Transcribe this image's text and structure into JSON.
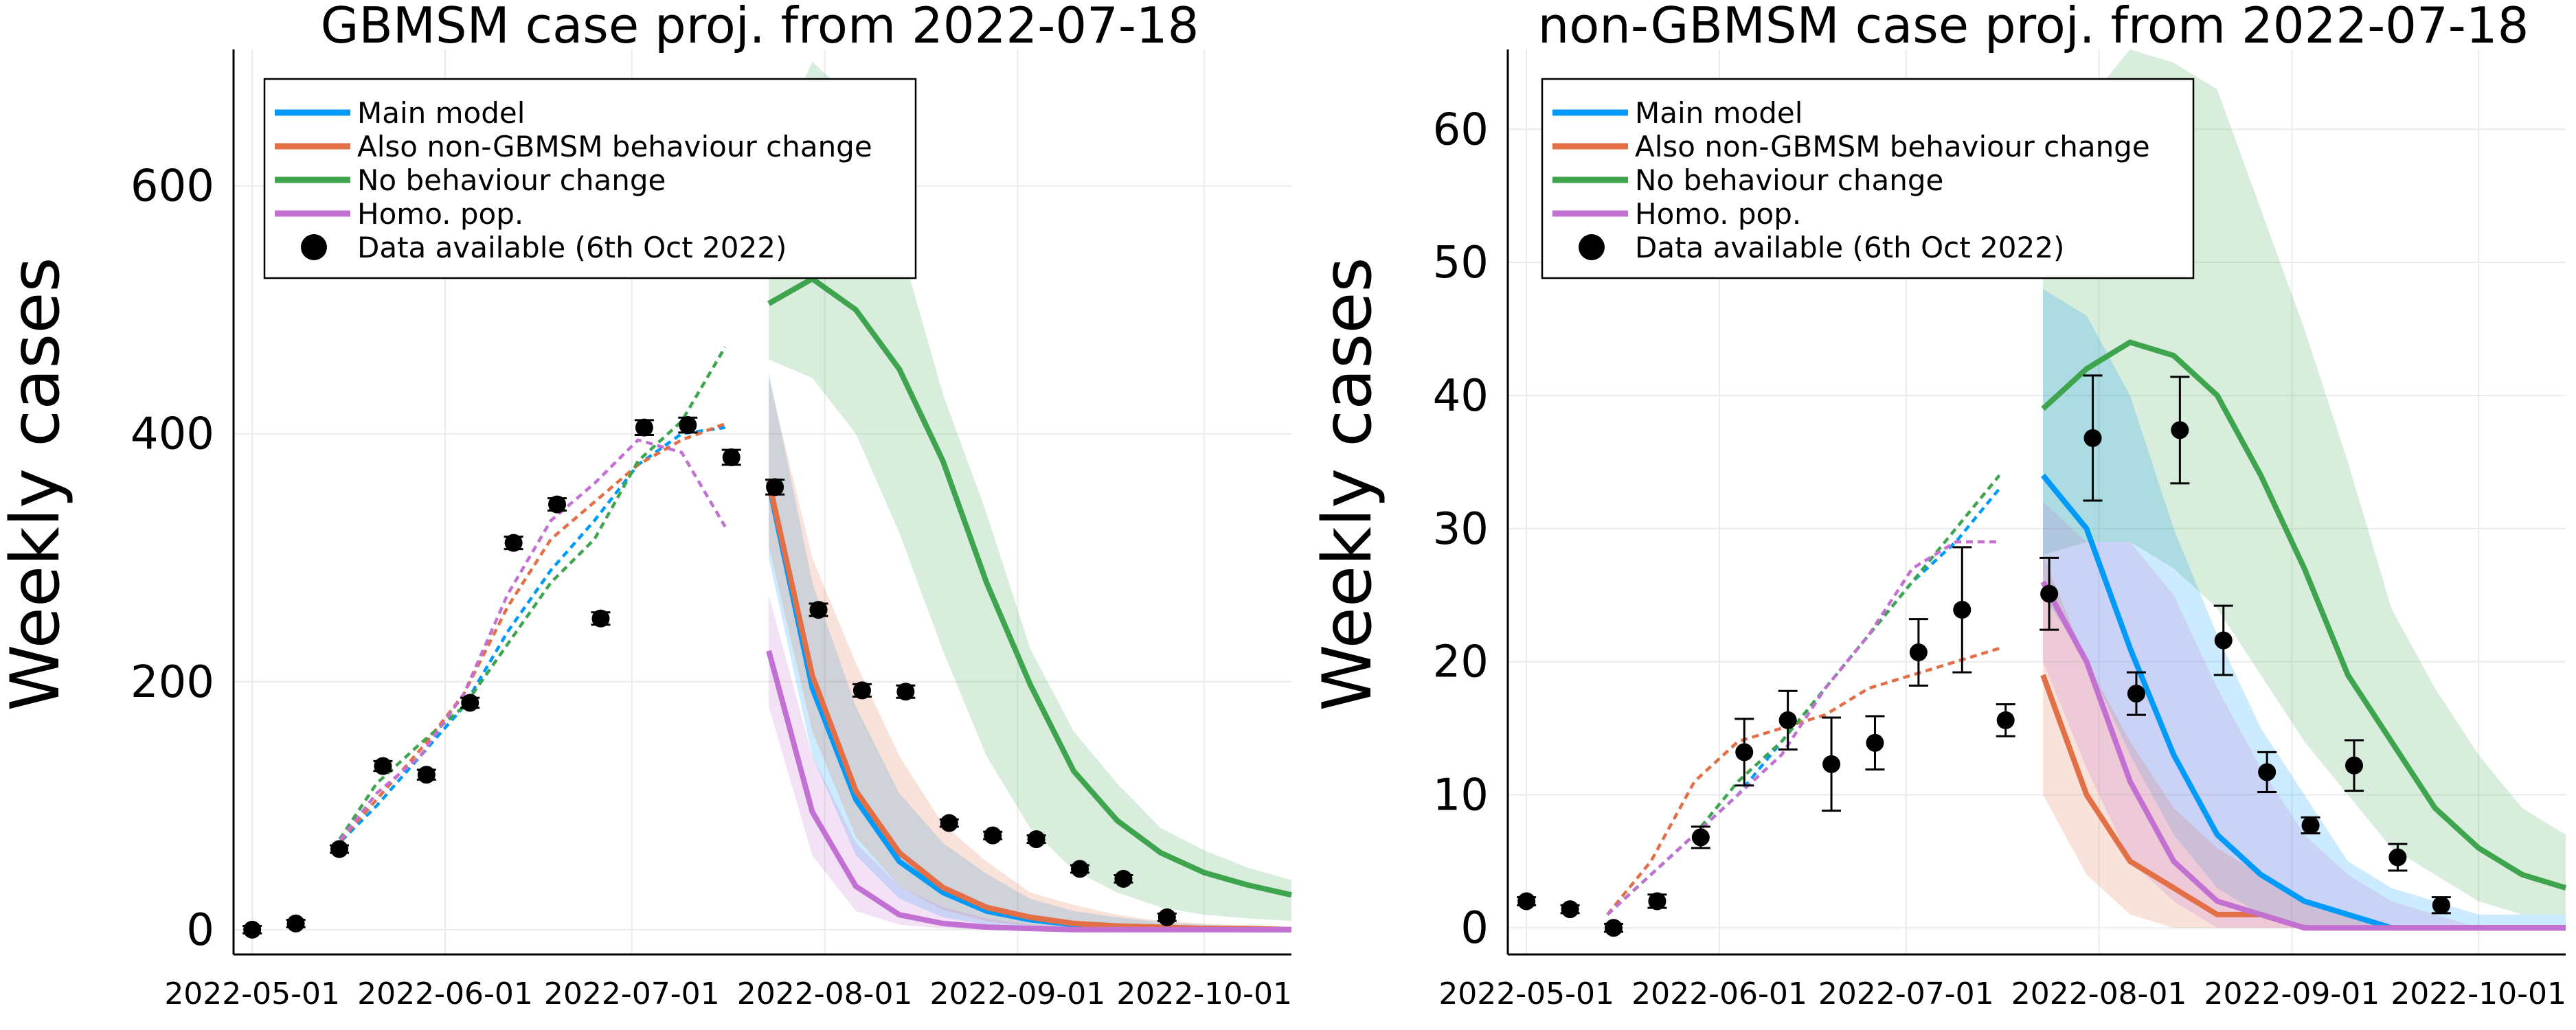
{
  "colors": {
    "main": "#009AFA",
    "also": "#E26F46",
    "nochange": "#3EA44E",
    "homo": "#C270D2",
    "data": "#000000",
    "grid": "#EBEBEB"
  },
  "chart_data": [
    {
      "type": "line",
      "title": "GBMSM case proj. from 2022-07-18",
      "xlabel": "",
      "ylabel": "Weekly cases",
      "x_ticks": [
        "2022-05-01",
        "2022-06-01",
        "2022-07-01",
        "2022-08-01",
        "2022-09-01",
        "2022-10-01"
      ],
      "xlim": [
        "2022-04-28",
        "2022-10-15"
      ],
      "y_ticks": [
        0,
        200,
        400,
        600
      ],
      "ylim": [
        -20,
        710
      ],
      "grid": true,
      "legend_position": "top-left",
      "legend": [
        "Main model",
        "Also non-GBMSM behaviour change",
        "No behaviour change",
        "Homo. pop.",
        "Data available (6th Oct 2022)"
      ],
      "fit_series": [
        {
          "key": "main",
          "x": [
            "2022-05-14",
            "2022-05-21",
            "2022-05-28",
            "2022-06-04",
            "2022-06-11",
            "2022-06-18",
            "2022-06-25",
            "2022-07-02",
            "2022-07-09",
            "2022-07-16"
          ],
          "values": [
            65,
            100,
            140,
            180,
            240,
            290,
            330,
            375,
            400,
            405
          ]
        },
        {
          "key": "also",
          "x": [
            "2022-05-14",
            "2022-05-21",
            "2022-05-28",
            "2022-06-04",
            "2022-06-11",
            "2022-06-18",
            "2022-06-25",
            "2022-07-02",
            "2022-07-09",
            "2022-07-16"
          ],
          "values": [
            65,
            105,
            145,
            190,
            260,
            315,
            345,
            375,
            395,
            408
          ]
        },
        {
          "key": "nochange",
          "x": [
            "2022-05-14",
            "2022-05-21",
            "2022-05-28",
            "2022-06-04",
            "2022-06-11",
            "2022-06-18",
            "2022-06-25",
            "2022-07-02",
            "2022-07-09",
            "2022-07-16"
          ],
          "values": [
            65,
            118,
            150,
            180,
            230,
            280,
            315,
            378,
            410,
            470
          ]
        },
        {
          "key": "homo",
          "x": [
            "2022-05-14",
            "2022-05-21",
            "2022-05-28",
            "2022-06-04",
            "2022-06-11",
            "2022-06-18",
            "2022-06-25",
            "2022-07-02",
            "2022-07-09",
            "2022-07-16"
          ],
          "values": [
            65,
            110,
            140,
            190,
            270,
            330,
            360,
            395,
            385,
            325
          ]
        }
      ],
      "proj_series": [
        {
          "key": "nochange",
          "name": "No behaviour change",
          "x": [
            "2022-07-23",
            "2022-07-30",
            "2022-08-06",
            "2022-08-13",
            "2022-08-20",
            "2022-08-27",
            "2022-09-03",
            "2022-09-10",
            "2022-09-17",
            "2022-09-24",
            "2022-10-01",
            "2022-10-08",
            "2022-10-15"
          ],
          "values": [
            505,
            525,
            500,
            452,
            378,
            280,
            198,
            128,
            88,
            62,
            46,
            36,
            28
          ],
          "lower": [
            460,
            445,
            400,
            320,
            225,
            140,
            82,
            48,
            30,
            18,
            12,
            9,
            7
          ],
          "upper": [
            620,
            700,
            668,
            555,
            432,
            336,
            227,
            160,
            118,
            82,
            64,
            50,
            40
          ]
        },
        {
          "key": "main",
          "name": "Main model",
          "x": [
            "2022-07-23",
            "2022-07-30",
            "2022-08-06",
            "2022-08-13",
            "2022-08-20",
            "2022-08-27",
            "2022-09-03",
            "2022-09-10",
            "2022-09-17",
            "2022-09-24",
            "2022-10-01",
            "2022-10-08",
            "2022-10-15"
          ],
          "values": [
            360,
            195,
            105,
            55,
            30,
            15,
            8,
            4,
            2,
            1,
            1,
            0,
            0
          ],
          "lower": [
            300,
            140,
            60,
            25,
            10,
            4,
            1,
            0,
            0,
            0,
            0,
            0,
            0
          ],
          "upper": [
            450,
            280,
            180,
            110,
            70,
            45,
            25,
            15,
            10,
            6,
            4,
            3,
            2
          ]
        },
        {
          "key": "also",
          "name": "Also non-GBMSM behaviour change",
          "x": [
            "2022-07-23",
            "2022-07-30",
            "2022-08-06",
            "2022-08-13",
            "2022-08-20",
            "2022-08-27",
            "2022-09-03",
            "2022-09-10",
            "2022-09-17",
            "2022-09-24",
            "2022-10-01",
            "2022-10-08",
            "2022-10-15"
          ],
          "values": [
            362,
            205,
            112,
            62,
            34,
            18,
            10,
            5,
            3,
            2,
            1,
            1,
            0
          ],
          "lower": [
            310,
            160,
            75,
            35,
            16,
            7,
            3,
            1,
            0,
            0,
            0,
            0,
            0
          ],
          "upper": [
            445,
            300,
            215,
            140,
            85,
            55,
            30,
            20,
            12,
            7,
            5,
            3,
            2
          ]
        },
        {
          "key": "homo",
          "name": "Homo. pop.",
          "x": [
            "2022-07-23",
            "2022-07-30",
            "2022-08-06",
            "2022-08-13",
            "2022-08-20",
            "2022-08-27",
            "2022-09-03",
            "2022-09-10",
            "2022-09-17",
            "2022-09-24",
            "2022-10-01",
            "2022-10-08",
            "2022-10-15"
          ],
          "values": [
            225,
            95,
            35,
            12,
            5,
            2,
            1,
            0,
            0,
            0,
            0,
            0,
            0
          ],
          "lower": [
            180,
            60,
            15,
            4,
            1,
            0,
            0,
            0,
            0,
            0,
            0,
            0,
            0
          ],
          "upper": [
            270,
            140,
            70,
            35,
            18,
            9,
            4,
            2,
            1,
            0,
            0,
            0,
            0
          ]
        }
      ],
      "data_points": {
        "name": "Data available (6th Oct 2022)",
        "x": [
          "2022-05-01",
          "2022-05-08",
          "2022-05-15",
          "2022-05-22",
          "2022-05-29",
          "2022-06-05",
          "2022-06-12",
          "2022-06-19",
          "2022-06-26",
          "2022-07-03",
          "2022-07-10",
          "2022-07-17",
          "2022-07-24",
          "2022-07-31",
          "2022-08-07",
          "2022-08-14",
          "2022-08-21",
          "2022-08-28",
          "2022-09-04",
          "2022-09-11",
          "2022-09-18",
          "2022-09-25"
        ],
        "values": [
          0,
          5,
          65,
          132,
          125,
          183,
          312,
          343,
          251,
          405,
          407,
          381,
          357,
          258,
          193,
          192,
          86,
          76,
          73,
          49,
          41,
          10
        ],
        "err": [
          3,
          3,
          3,
          4,
          4,
          4,
          5,
          5,
          5,
          6,
          6,
          6,
          6,
          5,
          5,
          5,
          3,
          3,
          3,
          3,
          3,
          3
        ]
      }
    },
    {
      "type": "line",
      "title": "non-GBMSM case proj. from 2022-07-18",
      "xlabel": "",
      "ylabel": "Weekly cases",
      "x_ticks": [
        "2022-05-01",
        "2022-06-01",
        "2022-07-01",
        "2022-08-01",
        "2022-09-01",
        "2022-10-01"
      ],
      "xlim": [
        "2022-04-28",
        "2022-10-15"
      ],
      "y_ticks": [
        0,
        10,
        20,
        30,
        40,
        50,
        60
      ],
      "ylim": [
        -2,
        66
      ],
      "grid": true,
      "legend_position": "top-left",
      "legend": [
        "Main model",
        "Also non-GBMSM behaviour change",
        "No behaviour change",
        "Homo. pop.",
        "Data available (6th Oct 2022)"
      ],
      "fit_series": [
        {
          "key": "main",
          "x": [
            "2022-05-14",
            "2022-05-21",
            "2022-05-28",
            "2022-06-04",
            "2022-06-11",
            "2022-06-18",
            "2022-06-25",
            "2022-07-02",
            "2022-07-09",
            "2022-07-16"
          ],
          "values": [
            1,
            4,
            7,
            10,
            14,
            18,
            22,
            26,
            29,
            33
          ]
        },
        {
          "key": "also",
          "x": [
            "2022-05-14",
            "2022-05-21",
            "2022-05-28",
            "2022-06-04",
            "2022-06-11",
            "2022-06-18",
            "2022-06-25",
            "2022-07-02",
            "2022-07-09",
            "2022-07-16"
          ],
          "values": [
            1,
            5,
            11,
            14,
            15,
            16,
            18,
            19,
            20,
            21
          ]
        },
        {
          "key": "nochange",
          "x": [
            "2022-05-14",
            "2022-05-21",
            "2022-05-28",
            "2022-06-04",
            "2022-06-11",
            "2022-06-18",
            "2022-06-25",
            "2022-07-02",
            "2022-07-09",
            "2022-07-16"
          ],
          "values": [
            1,
            4,
            7,
            11,
            14,
            18,
            22,
            26,
            30,
            34
          ]
        },
        {
          "key": "homo",
          "x": [
            "2022-05-14",
            "2022-05-21",
            "2022-05-28",
            "2022-06-04",
            "2022-06-11",
            "2022-06-18",
            "2022-06-25",
            "2022-07-02",
            "2022-07-09",
            "2022-07-16"
          ],
          "values": [
            1,
            4,
            7,
            10,
            13,
            18,
            22,
            27,
            29,
            29
          ]
        }
      ],
      "proj_series": [
        {
          "key": "nochange",
          "name": "No behaviour change",
          "x": [
            "2022-07-23",
            "2022-07-30",
            "2022-08-06",
            "2022-08-13",
            "2022-08-20",
            "2022-08-27",
            "2022-09-03",
            "2022-09-10",
            "2022-09-17",
            "2022-09-24",
            "2022-10-01",
            "2022-10-08",
            "2022-10-15"
          ],
          "values": [
            39,
            42,
            44,
            43,
            40,
            34,
            27,
            19,
            14,
            9,
            6,
            4,
            3
          ],
          "lower": [
            28,
            29,
            29,
            27,
            24,
            19,
            14,
            10,
            6,
            4,
            2,
            1,
            1
          ],
          "upper": [
            55,
            62,
            66,
            65,
            63,
            54,
            45,
            35,
            24,
            18,
            13,
            9,
            7
          ]
        },
        {
          "key": "main",
          "name": "Main model",
          "x": [
            "2022-07-23",
            "2022-07-30",
            "2022-08-06",
            "2022-08-13",
            "2022-08-20",
            "2022-08-27",
            "2022-09-03",
            "2022-09-10",
            "2022-09-17",
            "2022-09-24",
            "2022-10-01",
            "2022-10-08",
            "2022-10-15"
          ],
          "values": [
            34,
            30,
            21,
            13,
            7,
            4,
            2,
            1,
            0,
            0,
            0,
            0,
            0
          ],
          "lower": [
            25,
            20,
            13,
            7,
            3,
            1,
            0,
            0,
            0,
            0,
            0,
            0,
            0
          ],
          "upper": [
            48,
            46,
            40,
            30,
            22,
            15,
            10,
            5,
            3,
            2,
            1,
            1,
            1
          ]
        },
        {
          "key": "also",
          "name": "Also non-GBMSM behaviour change",
          "x": [
            "2022-07-23",
            "2022-07-30",
            "2022-08-06",
            "2022-08-13",
            "2022-08-20",
            "2022-08-27",
            "2022-09-03",
            "2022-09-10",
            "2022-09-17",
            "2022-09-24",
            "2022-10-01",
            "2022-10-08",
            "2022-10-15"
          ],
          "values": [
            19,
            10,
            5,
            3,
            1,
            1,
            0,
            0,
            0,
            0,
            0,
            0,
            0
          ],
          "lower": [
            10,
            4,
            1,
            0,
            0,
            0,
            0,
            0,
            0,
            0,
            0,
            0,
            0
          ],
          "upper": [
            28,
            20,
            14,
            9,
            6,
            4,
            2,
            1,
            0,
            0,
            0,
            0,
            0
          ]
        },
        {
          "key": "homo",
          "name": "Homo. pop.",
          "x": [
            "2022-07-23",
            "2022-07-30",
            "2022-08-06",
            "2022-08-13",
            "2022-08-20",
            "2022-08-27",
            "2022-09-03",
            "2022-09-10",
            "2022-09-17",
            "2022-09-24",
            "2022-10-01",
            "2022-10-08",
            "2022-10-15"
          ],
          "values": [
            26,
            20,
            11,
            5,
            2,
            1,
            0,
            0,
            0,
            0,
            0,
            0,
            0
          ],
          "lower": [
            20,
            12,
            5,
            2,
            0,
            0,
            0,
            0,
            0,
            0,
            0,
            0,
            0
          ],
          "upper": [
            32,
            29,
            29,
            25,
            18,
            12,
            7,
            4,
            2,
            1,
            0,
            0,
            0
          ]
        }
      ],
      "data_points": {
        "name": "Data available (6th Oct 2022)",
        "x": [
          "2022-05-01",
          "2022-05-08",
          "2022-05-15",
          "2022-05-22",
          "2022-05-29",
          "2022-06-05",
          "2022-06-12",
          "2022-06-19",
          "2022-06-26",
          "2022-07-03",
          "2022-07-10",
          "2022-07-17",
          "2022-07-24",
          "2022-07-31",
          "2022-08-07",
          "2022-08-14",
          "2022-08-21",
          "2022-08-28",
          "2022-09-04",
          "2022-09-11",
          "2022-09-18",
          "2022-09-25"
        ],
        "values": [
          2,
          1.4,
          0,
          2,
          6.8,
          13.2,
          15.6,
          12.3,
          13.9,
          20.7,
          23.9,
          15.6,
          25.1,
          36.8,
          17.6,
          37.4,
          21.6,
          11.7,
          7.7,
          12.2,
          5.3,
          1.7
        ],
        "err": [
          0.3,
          0.3,
          0.3,
          0.5,
          0.8,
          2.5,
          2.2,
          3.5,
          2,
          2.5,
          4.7,
          1.2,
          2.7,
          4.7,
          1.6,
          4,
          2.6,
          1.5,
          0.6,
          1.9,
          1,
          0.6
        ]
      }
    }
  ]
}
